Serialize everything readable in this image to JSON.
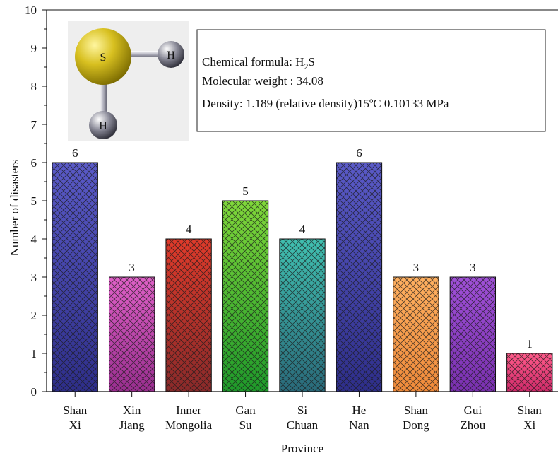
{
  "chart_data": {
    "type": "bar",
    "title": "",
    "xlabel": "Province",
    "ylabel": "Number of disasters",
    "ylim": [
      0,
      10
    ],
    "yticks": [
      0,
      1,
      2,
      3,
      4,
      5,
      6,
      7,
      8,
      9,
      10
    ],
    "grid": false,
    "categories": [
      [
        "Shan",
        "Xi"
      ],
      [
        "Xin",
        "Jiang"
      ],
      [
        "Inner",
        "Mongolia"
      ],
      [
        "Gan",
        "Su"
      ],
      [
        "Si",
        "Chuan"
      ],
      [
        "He",
        "Nan"
      ],
      [
        "Shan",
        "Dong"
      ],
      [
        "Gui",
        "Zhou"
      ],
      [
        "Shan",
        "Xi"
      ]
    ],
    "values": [
      6,
      3,
      4,
      5,
      4,
      6,
      3,
      3,
      1
    ],
    "data_labels": [
      "6",
      "3",
      "4",
      "5",
      "4",
      "6",
      "3",
      "3",
      "1"
    ],
    "bar_colors": [
      [
        "#5a5ac8",
        "#2e2e8a"
      ],
      [
        "#e060c8",
        "#9a2e90"
      ],
      [
        "#e03a2a",
        "#8a2a2a"
      ],
      [
        "#80d83a",
        "#1e9a2a"
      ],
      [
        "#40c0b0",
        "#2a6a7a"
      ],
      [
        "#5a5ac8",
        "#2e2e8a"
      ],
      [
        "#ffb060",
        "#f08a3a"
      ],
      [
        "#a050d8",
        "#7a30b0"
      ],
      [
        "#ff5a8a",
        "#d02a6a"
      ]
    ],
    "pattern": "crosshatch"
  },
  "info_box": {
    "formula_prefix": "Chemical formula: H",
    "formula_sub": "2",
    "formula_suffix": "S",
    "weight": "Molecular weight : 34.08",
    "density": "Density: 1.189 (relative density)15ºC 0.10133 MPa"
  },
  "molecule": {
    "center_atom": "S",
    "atom_1": "H",
    "atom_2": "H",
    "colors": {
      "sulfur": "#d8c020",
      "hydrogen": "#6a6a7a",
      "background": "#eeeeee"
    }
  }
}
